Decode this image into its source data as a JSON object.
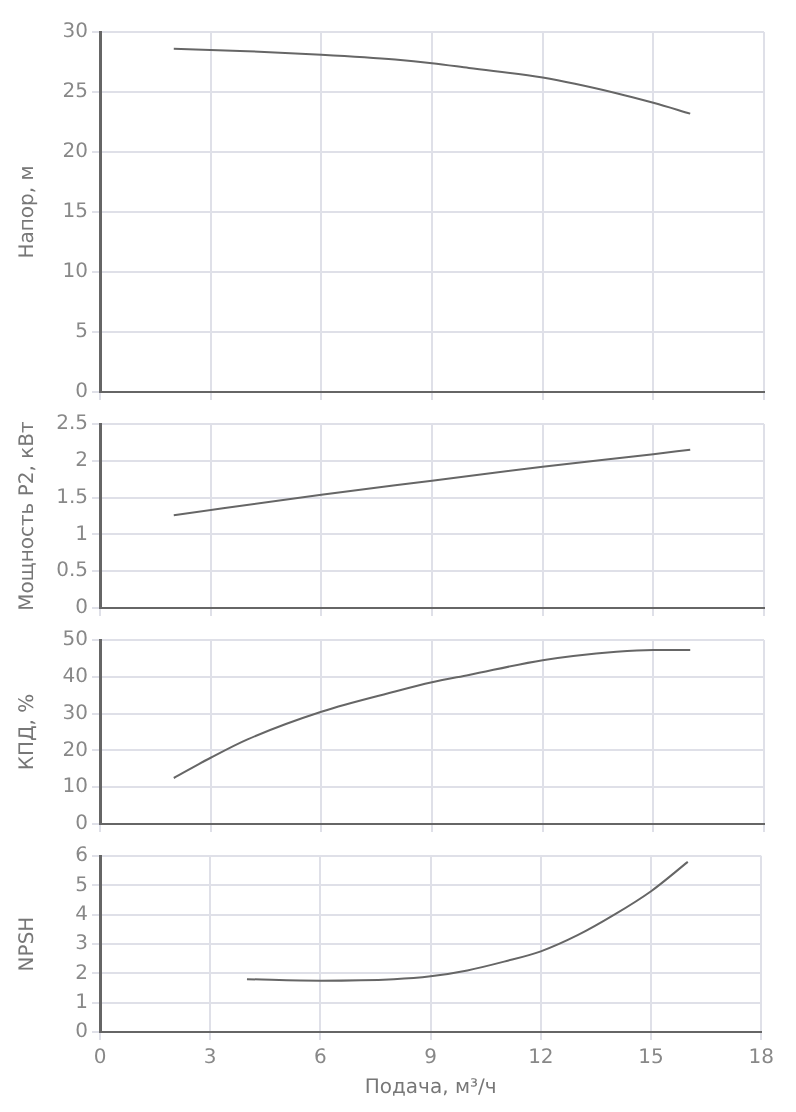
{
  "chart_data": [
    {
      "type": "line",
      "ylabel": "Напор, м",
      "x": [
        2,
        4,
        6,
        8,
        9,
        10,
        12,
        14,
        15,
        16
      ],
      "series": [
        {
          "color": "#666666",
          "values": [
            28.6,
            28.4,
            28.1,
            27.7,
            27.4,
            27.0,
            26.2,
            24.9,
            24.1,
            23.2
          ]
        }
      ],
      "xlim": [
        0,
        18
      ],
      "xticks": [
        0,
        3,
        6,
        9,
        12,
        15,
        18
      ],
      "ylim": [
        0,
        30
      ],
      "yticks": [
        0,
        5,
        10,
        15,
        20,
        25,
        30
      ],
      "grid": true,
      "tick_labels": "y",
      "marker": "none"
    },
    {
      "type": "line",
      "ylabel": "Мощность P2, кВт",
      "x": [
        2,
        6,
        9,
        12,
        15,
        16
      ],
      "series": [
        {
          "color": "#666666",
          "values": [
            1.26,
            1.54,
            1.73,
            1.92,
            2.09,
            2.15
          ]
        }
      ],
      "xlim": [
        0,
        18
      ],
      "xticks": [
        0,
        3,
        6,
        9,
        12,
        15,
        18
      ],
      "ylim": [
        0,
        2.5
      ],
      "yticks": [
        0,
        0.5,
        1,
        1.5,
        2,
        2.5
      ],
      "grid": true,
      "tick_labels": "y",
      "marker": "none"
    },
    {
      "type": "line",
      "ylabel": "КПД, %",
      "x": [
        2,
        3,
        4,
        6,
        8,
        9,
        10,
        12,
        14,
        15,
        16
      ],
      "series": [
        {
          "color": "#666666",
          "values": [
            12.5,
            18,
            23,
            30.5,
            36,
            38.5,
            40.5,
            44.5,
            46.8,
            47.3,
            47.3
          ]
        }
      ],
      "xlim": [
        0,
        18
      ],
      "xticks": [
        0,
        3,
        6,
        9,
        12,
        15,
        18
      ],
      "ylim": [
        0,
        50
      ],
      "yticks": [
        0,
        10,
        20,
        30,
        40,
        50
      ],
      "grid": true,
      "tick_labels": "y",
      "marker": "none"
    },
    {
      "type": "line",
      "ylabel": "NPSH",
      "xlabel": "Подача, м³/ч",
      "x": [
        4,
        6,
        8,
        9,
        10,
        11,
        12,
        13,
        14,
        15,
        16
      ],
      "series": [
        {
          "color": "#666666",
          "values": [
            1.8,
            1.75,
            1.8,
            1.9,
            2.1,
            2.4,
            2.75,
            3.3,
            4.0,
            4.8,
            5.8
          ]
        }
      ],
      "xlim": [
        0,
        18
      ],
      "xticks": [
        0,
        3,
        6,
        9,
        12,
        15,
        18
      ],
      "ylim": [
        0,
        6
      ],
      "yticks": [
        0,
        1,
        2,
        3,
        4,
        5,
        6
      ],
      "grid": true,
      "marker": "none"
    }
  ]
}
